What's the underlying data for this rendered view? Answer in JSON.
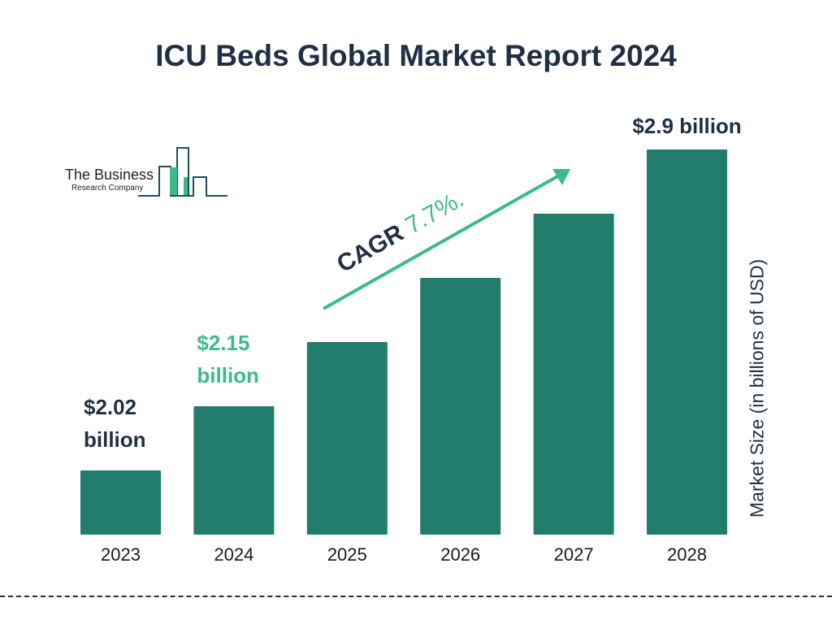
{
  "title": "ICU Beds Global Market Report 2024",
  "logo": {
    "line1": "The Business",
    "line2": "Research Company"
  },
  "colors": {
    "bar": "#217c6c",
    "accent": "#3dbb87",
    "dark": "#1f3044"
  },
  "chart_data": {
    "type": "bar",
    "title": "ICU Beds Global Market Report 2024",
    "categories": [
      "2023",
      "2024",
      "2025",
      "2026",
      "2027",
      "2028"
    ],
    "values": [
      2.02,
      2.15,
      2.32,
      2.49,
      2.69,
      2.9
    ],
    "data_labels": [
      {
        "category": "2023",
        "line1": "$2.02",
        "line2": "billion",
        "color": "#1f3044"
      },
      {
        "category": "2024",
        "line1": "$2.15",
        "line2": "billion",
        "color": "#3dbb87"
      },
      {
        "category": "2028",
        "line1": "$2.9 billion",
        "line2": "",
        "color": "#1f3044"
      }
    ],
    "xlabel": "",
    "ylabel": "Market Size (in billions of USD)",
    "annotation": {
      "prefix": "CAGR ",
      "value": "7.7%."
    },
    "grid": false,
    "legend": "none"
  }
}
